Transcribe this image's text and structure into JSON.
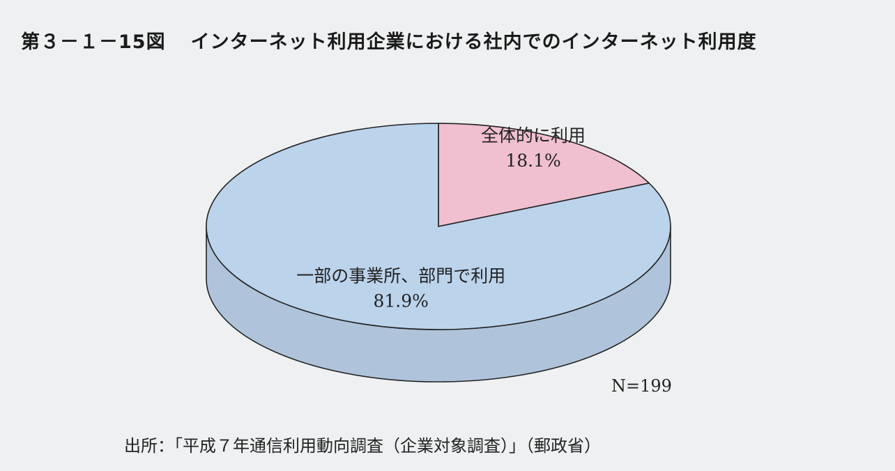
{
  "figure": {
    "number": "第３－１－15図",
    "title": "インターネット利用企業における社内でのインターネット利用度"
  },
  "chart_data": {
    "type": "pie",
    "title": "インターネット利用企業における社内でのインターネット利用度",
    "slices": [
      {
        "label": "全体的に利用",
        "value": 18.1,
        "value_label": "18.1%",
        "color": "#f0c0d0"
      },
      {
        "label": "一部の事業所、部門で利用",
        "value": 81.9,
        "value_label": "81.9%",
        "color": "#bcd3ec"
      }
    ],
    "n_label": "N=199",
    "style": "3d"
  },
  "source": "出所：「平成７年通信利用動向調査（企業対象調査）」（郵政省）"
}
